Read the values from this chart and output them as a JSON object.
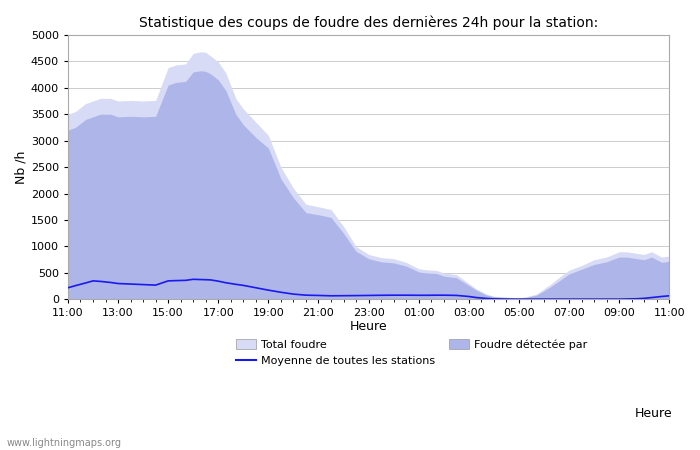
{
  "title": "Statistique des coups de foudre des dernières 24h pour la station:",
  "xlabel": "Heure",
  "ylabel": "Nb /h",
  "ylim": [
    0,
    5000
  ],
  "yticks": [
    0,
    500,
    1000,
    1500,
    2000,
    2500,
    3000,
    3500,
    4000,
    4500,
    5000
  ],
  "xtick_labels": [
    "11:00",
    "13:00",
    "15:00",
    "17:00",
    "19:00",
    "21:00",
    "23:00",
    "01:00",
    "03:00",
    "05:00",
    "07:00",
    "09:00",
    "11:00"
  ],
  "background_color": "#ffffff",
  "plot_bg_color": "#ffffff",
  "grid_color": "#cccccc",
  "fill_total_color": "#d8dbf5",
  "fill_detected_color": "#aeb5e8",
  "line_color": "#1a1aee",
  "watermark": "www.lightningmaps.org",
  "total_x": [
    0,
    0.3,
    0.7,
    1.0,
    1.3,
    1.7,
    2.0,
    2.5,
    3.0,
    3.5,
    4.0,
    4.3,
    4.7,
    5.0,
    5.3,
    5.5,
    5.7,
    6.0,
    6.3,
    6.7,
    7.0,
    7.5,
    8.0,
    8.5,
    9.0,
    9.5,
    10.0,
    10.5,
    11.0,
    11.5,
    12.0,
    12.5,
    13.0,
    13.5,
    14.0,
    14.3,
    14.7,
    15.0,
    15.5,
    16.0,
    16.3,
    16.7,
    17.0,
    17.3,
    17.7,
    18.0,
    18.3,
    18.7,
    19.0,
    19.3,
    19.7,
    20.0,
    20.5,
    21.0,
    21.5,
    22.0,
    22.3,
    22.7,
    23.0,
    23.3,
    23.7,
    24.0
  ],
  "total_y": [
    3500,
    3550,
    3700,
    3750,
    3800,
    3800,
    3750,
    3760,
    3750,
    3760,
    4380,
    4430,
    4450,
    4650,
    4680,
    4670,
    4600,
    4490,
    4280,
    3800,
    3600,
    3350,
    3100,
    2500,
    2100,
    1800,
    1750,
    1700,
    1380,
    1000,
    850,
    790,
    770,
    700,
    580,
    560,
    550,
    500,
    470,
    300,
    200,
    100,
    60,
    50,
    40,
    30,
    50,
    100,
    200,
    300,
    450,
    550,
    640,
    750,
    800,
    900,
    900,
    870,
    850,
    900,
    800,
    820
  ],
  "detected_x": [
    0,
    0.3,
    0.7,
    1.0,
    1.3,
    1.7,
    2.0,
    2.5,
    3.0,
    3.5,
    4.0,
    4.3,
    4.7,
    5.0,
    5.3,
    5.5,
    5.7,
    6.0,
    6.3,
    6.7,
    7.0,
    7.5,
    8.0,
    8.5,
    9.0,
    9.5,
    10.0,
    10.5,
    11.0,
    11.5,
    12.0,
    12.5,
    13.0,
    13.5,
    14.0,
    14.3,
    14.7,
    15.0,
    15.5,
    16.0,
    16.3,
    16.7,
    17.0,
    17.3,
    17.7,
    18.0,
    18.3,
    18.7,
    19.0,
    19.3,
    19.7,
    20.0,
    20.5,
    21.0,
    21.5,
    22.0,
    22.3,
    22.7,
    23.0,
    23.3,
    23.7,
    24.0
  ],
  "detected_y": [
    3200,
    3250,
    3400,
    3450,
    3500,
    3500,
    3450,
    3460,
    3450,
    3460,
    4050,
    4100,
    4120,
    4300,
    4320,
    4310,
    4260,
    4150,
    3950,
    3500,
    3300,
    3060,
    2860,
    2280,
    1920,
    1640,
    1600,
    1550,
    1250,
    910,
    770,
    710,
    690,
    630,
    520,
    500,
    490,
    440,
    410,
    265,
    175,
    85,
    50,
    40,
    30,
    20,
    40,
    80,
    160,
    250,
    380,
    480,
    570,
    660,
    710,
    800,
    800,
    770,
    750,
    800,
    700,
    720
  ],
  "moyenne_x": [
    0,
    0.3,
    0.7,
    1.0,
    1.3,
    1.7,
    2.0,
    2.5,
    3.0,
    3.5,
    4.0,
    4.3,
    4.7,
    5.0,
    5.3,
    5.5,
    5.7,
    6.0,
    6.3,
    6.7,
    7.0,
    7.5,
    8.0,
    8.5,
    9.0,
    9.5,
    10.0,
    10.5,
    11.0,
    11.5,
    12.0,
    12.5,
    13.0,
    13.5,
    14.0,
    14.3,
    14.7,
    15.0,
    15.5,
    16.0,
    16.3,
    16.7,
    17.0,
    17.3,
    17.7,
    18.0,
    18.3,
    18.7,
    19.0,
    19.3,
    19.7,
    20.0,
    20.5,
    21.0,
    21.5,
    22.0,
    22.3,
    22.7,
    23.0,
    23.3,
    23.7,
    24.0
  ],
  "moyenne_y": [
    220,
    260,
    310,
    350,
    340,
    320,
    300,
    290,
    280,
    270,
    350,
    355,
    360,
    380,
    375,
    372,
    368,
    345,
    315,
    285,
    265,
    220,
    175,
    135,
    100,
    80,
    75,
    68,
    70,
    72,
    75,
    78,
    80,
    80,
    78,
    78,
    80,
    80,
    76,
    55,
    35,
    18,
    10,
    8,
    5,
    5,
    5,
    5,
    5,
    5,
    5,
    5,
    5,
    5,
    5,
    5,
    8,
    12,
    20,
    35,
    55,
    68
  ]
}
